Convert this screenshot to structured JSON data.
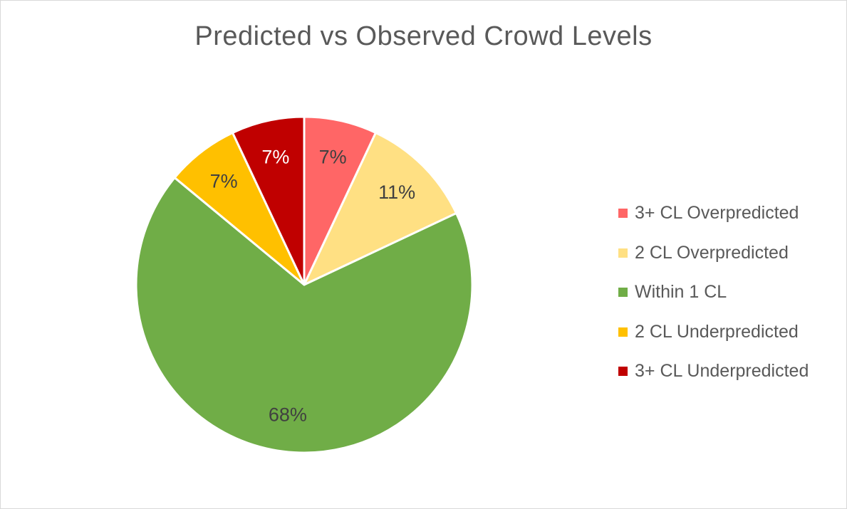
{
  "chart_data": {
    "type": "pie",
    "title": "Predicted vs Observed Crowd Levels",
    "slices": [
      {
        "label": "3+ CL Overpredicted",
        "value": 7,
        "display": "7%",
        "color": "#ff6666",
        "label_color": "#404040"
      },
      {
        "label": "2 CL Overpredicted",
        "value": 11,
        "display": "11%",
        "color": "#ffe083",
        "label_color": "#404040"
      },
      {
        "label": "Within 1 CL",
        "value": 68,
        "display": "68%",
        "color": "#70ad47",
        "label_color": "#404040"
      },
      {
        "label": "2 CL Underpredicted",
        "value": 7,
        "display": "7%",
        "color": "#ffc000",
        "label_color": "#404040"
      },
      {
        "label": "3+ CL Underpredicted",
        "value": 7,
        "display": "7%",
        "color": "#c00000",
        "label_color": "#ffffff"
      }
    ],
    "legend_position": "right"
  }
}
